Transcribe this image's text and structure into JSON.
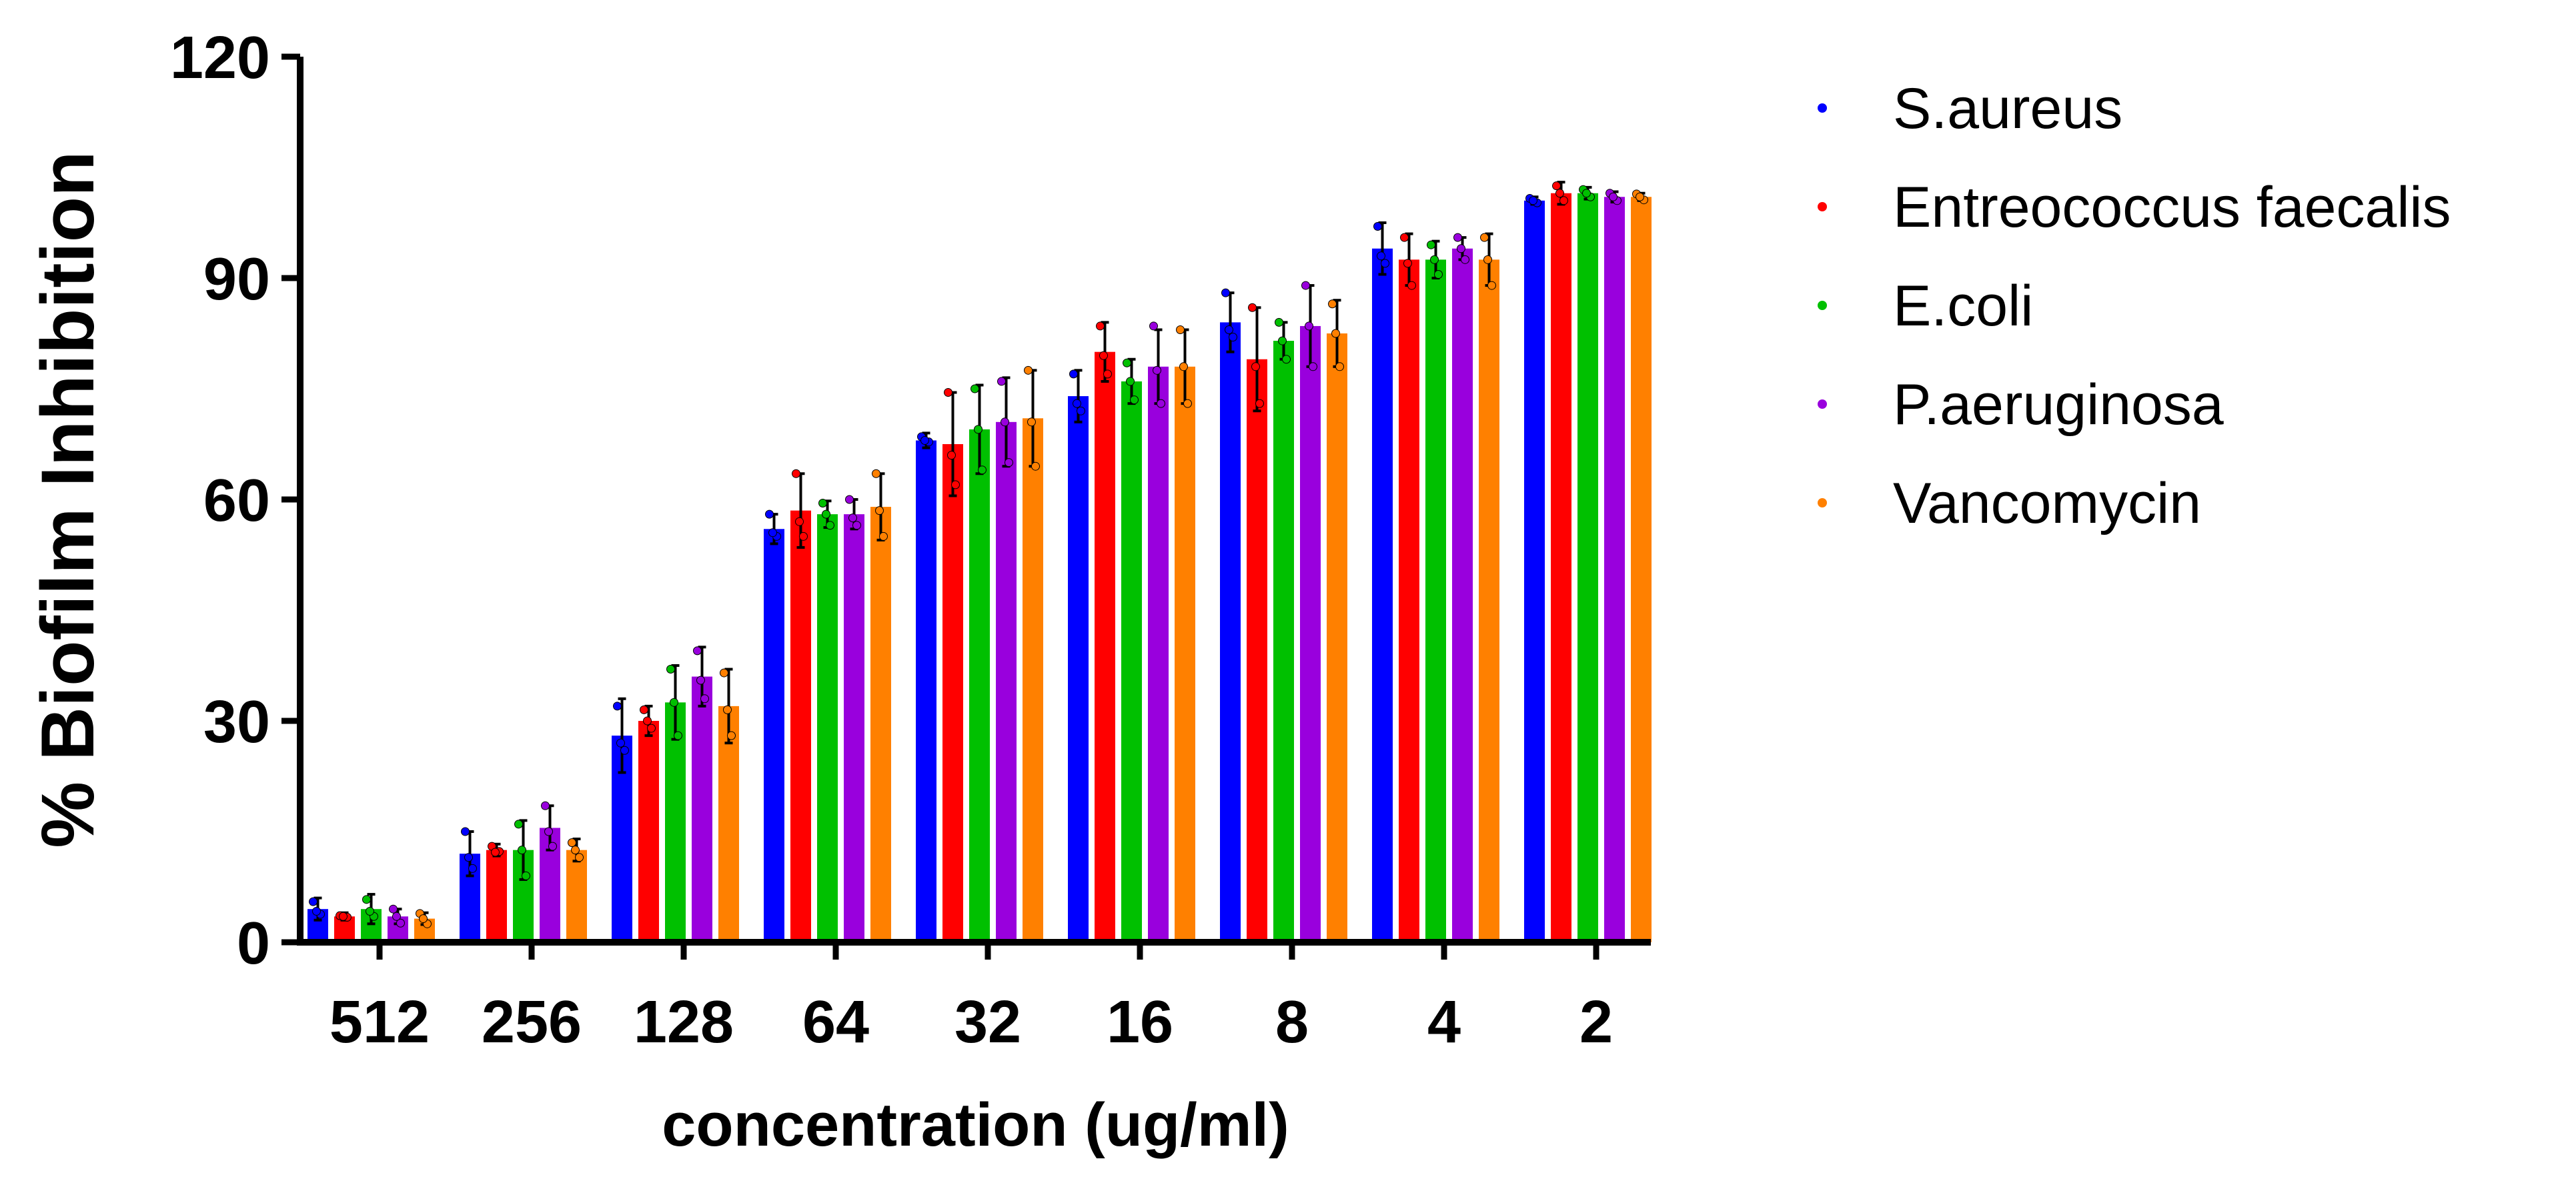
{
  "chart_data": {
    "type": "bar",
    "title": "",
    "xlabel": "concentration (ug/ml)",
    "ylabel": "% Biofilm Inhibition",
    "ylim": [
      0,
      120
    ],
    "yticks": [
      0,
      30,
      60,
      90,
      120
    ],
    "ytick_labels": [
      "0",
      "30",
      "60",
      "90",
      "120"
    ],
    "categories": [
      "512",
      "256",
      "128",
      "64",
      "32",
      "16",
      "8",
      "4",
      "2"
    ],
    "grid": false,
    "legend_position": "top-right",
    "series": [
      {
        "name": "S.aureus",
        "color": "#0000ff",
        "values": [
          4.5,
          12,
          28,
          56,
          68,
          74,
          84,
          94,
          100.5
        ],
        "errors": [
          1.5,
          3,
          5,
          2,
          1,
          3.5,
          4,
          3.5,
          0.5
        ],
        "points": [
          [
            5.5,
            3.8,
            4.2
          ],
          [
            15,
            10,
            11.5
          ],
          [
            32,
            26,
            27
          ],
          [
            58,
            55,
            55.5
          ],
          [
            68.5,
            67.8,
            68
          ],
          [
            77,
            72,
            73
          ],
          [
            88,
            82,
            83
          ],
          [
            97,
            92,
            93
          ],
          [
            100.8,
            100.2,
            100.5
          ]
        ]
      },
      {
        "name": "Entreococcus faecalis",
        "color": "#ff0000",
        "values": [
          3.5,
          12.5,
          30,
          58.5,
          67.5,
          80,
          79,
          92.5,
          101.5
        ],
        "errors": [
          0.5,
          0.8,
          2,
          5,
          7,
          4,
          7,
          3.5,
          1.5
        ],
        "points": [
          [
            3.6,
            3.4,
            3.5
          ],
          [
            13,
            12.3,
            12.2
          ],
          [
            31.5,
            29,
            30
          ],
          [
            63.5,
            55,
            57
          ],
          [
            74.5,
            62,
            66
          ],
          [
            83.5,
            77,
            79.5
          ],
          [
            86,
            73,
            78
          ],
          [
            95.5,
            89,
            92
          ],
          [
            102.5,
            100.5,
            101.5
          ]
        ]
      },
      {
        "name": "E.coli",
        "color": "#00c000",
        "values": [
          4.5,
          12.5,
          32.5,
          58,
          69.5,
          76,
          81.5,
          92.5,
          101.5
        ],
        "errors": [
          2,
          4,
          5,
          1.8,
          6,
          3,
          2.5,
          2.5,
          0.8
        ],
        "points": [
          [
            5.8,
            3.5,
            4.2
          ],
          [
            16,
            9,
            12.5
          ],
          [
            37,
            28,
            32.5
          ],
          [
            59.5,
            56.5,
            58
          ],
          [
            75,
            64,
            69.5
          ],
          [
            78.5,
            73.5,
            76
          ],
          [
            84,
            79,
            81.5
          ],
          [
            94.5,
            90.5,
            92.5
          ],
          [
            102,
            101,
            101.5
          ]
        ]
      },
      {
        "name": "P.aeruginosa",
        "color": "#9900dd",
        "values": [
          3.5,
          15.5,
          36,
          58,
          70.5,
          78,
          83.5,
          94,
          101
        ],
        "errors": [
          1,
          3,
          4,
          2,
          6,
          5,
          5.5,
          1.5,
          0.7
        ],
        "points": [
          [
            4.5,
            2.6,
            3.5
          ],
          [
            18.5,
            13,
            15
          ],
          [
            39.5,
            33,
            35.5
          ],
          [
            60,
            56.5,
            57.5
          ],
          [
            76,
            65,
            70.5
          ],
          [
            83.5,
            73,
            77.5
          ],
          [
            89,
            78,
            83.5
          ],
          [
            95.5,
            92.5,
            94
          ],
          [
            101.5,
            100.5,
            101
          ]
        ]
      },
      {
        "name": "Vancomycin",
        "color": "#ff8000",
        "values": [
          3.2,
          12.5,
          32,
          59,
          71,
          78,
          82.5,
          92.5,
          101
        ],
        "errors": [
          0.8,
          1.5,
          5,
          4.5,
          6.5,
          5,
          4.5,
          3.5,
          0.5
        ],
        "points": [
          [
            3.9,
            2.5,
            3.2
          ],
          [
            13.5,
            11.5,
            12.5
          ],
          [
            36.5,
            28,
            31.5
          ],
          [
            63.5,
            55,
            58.5
          ],
          [
            77.5,
            64.5,
            70.5
          ],
          [
            83,
            73,
            78
          ],
          [
            86.5,
            78,
            82.5
          ],
          [
            95.5,
            89,
            92.5
          ],
          [
            101.4,
            100.6,
            101
          ]
        ]
      }
    ]
  }
}
